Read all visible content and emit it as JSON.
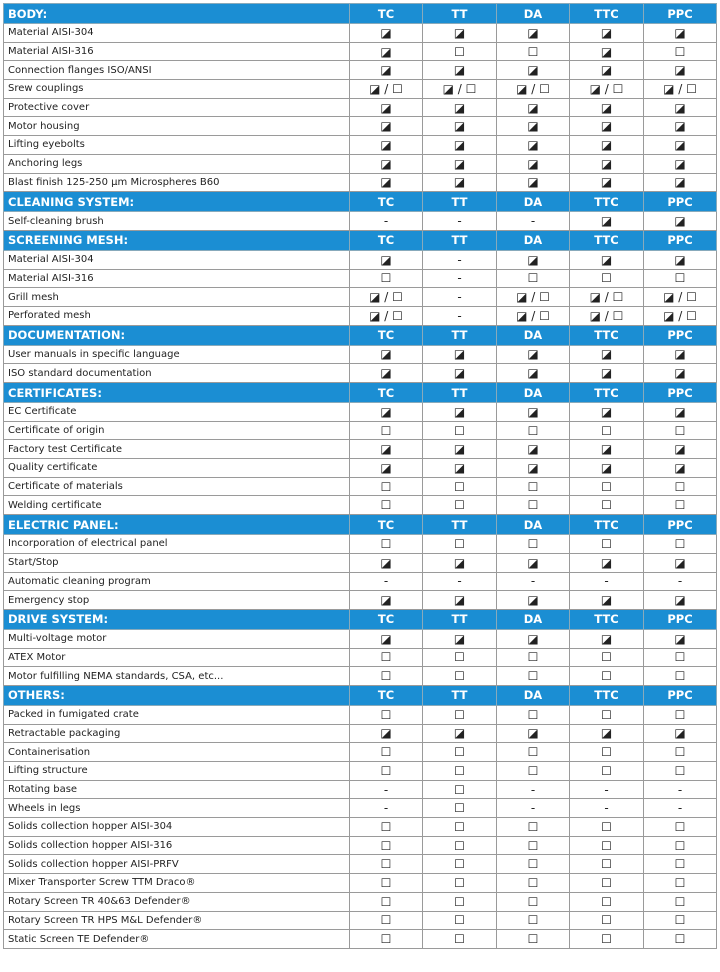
{
  "sections": [
    {
      "title": "BODY:",
      "columns": [
        "TC",
        "TT",
        "DA",
        "TTC",
        "PPC"
      ],
      "rows": [
        {
          "label": "Material AISI-304",
          "cells": [
            "◪",
            "◪",
            "◪",
            "◪",
            "◪"
          ]
        },
        {
          "label": "Material AISI-316",
          "cells": [
            "◪",
            "☐",
            "☐",
            "◪",
            "☐"
          ]
        },
        {
          "label": "Connection flanges ISO/ANSI",
          "cells": [
            "◪",
            "◪",
            "◪",
            "◪",
            "◪"
          ]
        },
        {
          "label": "Srew couplings",
          "cells": [
            "◪ / ☐",
            "◪ / ☐",
            "◪ / ☐",
            "◪ / ☐",
            "◪ / ☐"
          ]
        },
        {
          "label": "Protective cover",
          "cells": [
            "◪",
            "◪",
            "◪",
            "◪",
            "◪"
          ]
        },
        {
          "label": "Motor housing",
          "cells": [
            "◪",
            "◪",
            "◪",
            "◪",
            "◪"
          ]
        },
        {
          "label": "Lifting eyebolts",
          "cells": [
            "◪",
            "◪",
            "◪",
            "◪",
            "◪"
          ]
        },
        {
          "label": "Anchoring legs",
          "cells": [
            "◪",
            "◪",
            "◪",
            "◪",
            "◪"
          ]
        },
        {
          "label": "Blast finish 125-250 µm Microspheres B60",
          "cells": [
            "◪",
            "◪",
            "◪",
            "◪",
            "◪"
          ]
        }
      ]
    },
    {
      "title": "CLEANING SYSTEM:",
      "columns": [
        "TC",
        "TT",
        "DA",
        "TTC",
        "PPC"
      ],
      "rows": [
        {
          "label": "Self-cleaning brush",
          "cells": [
            "-",
            "-",
            "-",
            "◪",
            "◪"
          ]
        }
      ]
    },
    {
      "title": "SCREENING MESH:",
      "columns": [
        "TC",
        "TT",
        "DA",
        "TTC",
        "PPC"
      ],
      "rows": [
        {
          "label": "Material AISI-304",
          "cells": [
            "◪",
            "-",
            "◪",
            "◪",
            "◪"
          ]
        },
        {
          "label": "Material AISI-316",
          "cells": [
            "☐",
            "-",
            "☐",
            "☐",
            "☐"
          ]
        },
        {
          "label": "Grill mesh",
          "cells": [
            "◪ / ☐",
            "-",
            "◪ / ☐",
            "◪ / ☐",
            "◪ / ☐"
          ]
        },
        {
          "label": "Perforated mesh",
          "cells": [
            "◪ / ☐",
            "-",
            "◪ / ☐",
            "◪ / ☐",
            "◪ / ☐"
          ]
        }
      ]
    },
    {
      "title": "DOCUMENTATION:",
      "columns": [
        "TC",
        "TT",
        "DA",
        "TTC",
        "PPC"
      ],
      "rows": [
        {
          "label": "User manuals in specific language",
          "cells": [
            "◪",
            "◪",
            "◪",
            "◪",
            "◪"
          ]
        },
        {
          "label": "ISO standard documentation",
          "cells": [
            "◪",
            "◪",
            "◪",
            "◪",
            "◪"
          ]
        }
      ]
    },
    {
      "title": "CERTIFICATES:",
      "columns": [
        "TC",
        "TT",
        "DA",
        "TTC",
        "PPC"
      ],
      "rows": [
        {
          "label": "EC Certificate",
          "cells": [
            "◪",
            "◪",
            "◪",
            "◪",
            "◪"
          ]
        },
        {
          "label": "Certificate of origin",
          "cells": [
            "☐",
            "☐",
            "☐",
            "☐",
            "☐"
          ]
        },
        {
          "label": "Factory test Certificate",
          "cells": [
            "◪",
            "◪",
            "◪",
            "◪",
            "◪"
          ]
        },
        {
          "label": "Quality certificate",
          "cells": [
            "◪",
            "◪",
            "◪",
            "◪",
            "◪"
          ]
        },
        {
          "label": "Certificate of materials",
          "cells": [
            "☐",
            "☐",
            "☐",
            "☐",
            "☐"
          ]
        },
        {
          "label": "Welding certificate",
          "cells": [
            "☐",
            "☐",
            "☐",
            "☐",
            "☐"
          ]
        }
      ]
    },
    {
      "title": "ELECTRIC PANEL:",
      "columns": [
        "TC",
        "TT",
        "DA",
        "TTC",
        "PPC"
      ],
      "rows": [
        {
          "label": "Incorporation of electrical panel",
          "cells": [
            "☐",
            "☐",
            "☐",
            "☐",
            "☐"
          ]
        },
        {
          "label": "Start/Stop",
          "cells": [
            "◪",
            "◪",
            "◪",
            "◪",
            "◪"
          ]
        },
        {
          "label": "Automatic cleaning program",
          "cells": [
            "-",
            "-",
            "-",
            "-",
            "-"
          ]
        },
        {
          "label": "Emergency stop",
          "cells": [
            "◪",
            "◪",
            "◪",
            "◪",
            "◪"
          ]
        }
      ]
    },
    {
      "title": "DRIVE SYSTEM:",
      "columns": [
        "TC",
        "TT",
        "DA",
        "TTC",
        "PPC"
      ],
      "rows": [
        {
          "label": "Multi-voltage motor",
          "cells": [
            "◪",
            "◪",
            "◪",
            "◪",
            "◪"
          ]
        },
        {
          "label": "ATEX Motor",
          "cells": [
            "☐",
            "☐",
            "☐",
            "☐",
            "☐"
          ]
        },
        {
          "label": "Motor fulfilling NEMA standards, CSA, etc...",
          "cells": [
            "☐",
            "☐",
            "☐",
            "☐",
            "☐"
          ]
        }
      ]
    },
    {
      "title": "OTHERS:",
      "columns": [
        "TC",
        "TT",
        "DA",
        "TTC",
        "PPC"
      ],
      "rows": [
        {
          "label": "Packed in fumigated crate",
          "cells": [
            "☐",
            "☐",
            "☐",
            "☐",
            "☐"
          ]
        },
        {
          "label": "Retractable packaging",
          "cells": [
            "◪",
            "◪",
            "◪",
            "◪",
            "◪"
          ]
        },
        {
          "label": "Containerisation",
          "cells": [
            "☐",
            "☐",
            "☐",
            "☐",
            "☐"
          ]
        },
        {
          "label": "Lifting structure",
          "cells": [
            "☐",
            "☐",
            "☐",
            "☐",
            "☐"
          ]
        },
        {
          "label": "Rotating base",
          "cells": [
            "-",
            "☐",
            "-",
            "-",
            "-"
          ]
        },
        {
          "label": "Wheels in legs",
          "cells": [
            "-",
            "☐",
            "-",
            "-",
            "-"
          ]
        },
        {
          "label": "Solids collection hopper AISI-304",
          "cells": [
            "☐",
            "☐",
            "☐",
            "☐",
            "☐"
          ]
        },
        {
          "label": "Solids collection hopper AISI-316",
          "cells": [
            "☐",
            "☐",
            "☐",
            "☐",
            "☐"
          ]
        },
        {
          "label": "Solids collection hopper AISI-PRFV",
          "cells": [
            "☐",
            "☐",
            "☐",
            "☐",
            "☐"
          ]
        },
        {
          "label": "Mixer Transporter Screw TTM Draco®",
          "cells": [
            "☐",
            "☐",
            "☐",
            "☐",
            "☐"
          ]
        },
        {
          "label": "Rotary Screen TR 40&63 Defender®",
          "cells": [
            "☐",
            "☐",
            "☐",
            "☐",
            "☐"
          ]
        },
        {
          "label": "Rotary Screen TR HPS M&L Defender®",
          "cells": [
            "☐",
            "☐",
            "☐",
            "☐",
            "☐"
          ]
        },
        {
          "label": "Static Screen TE Defender®",
          "cells": [
            "☐",
            "☐",
            "☐",
            "☐",
            "☐"
          ]
        }
      ]
    }
  ]
}
